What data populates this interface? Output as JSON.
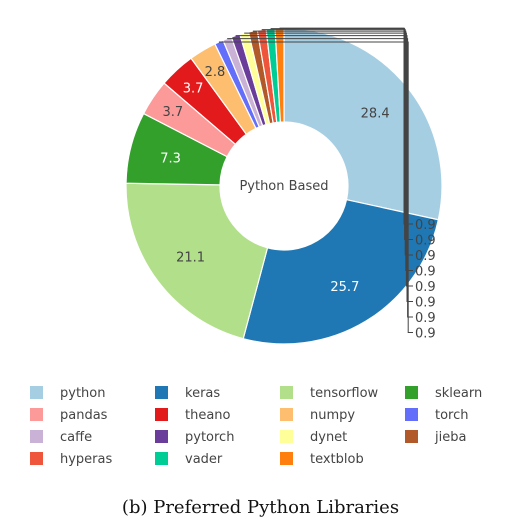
{
  "caption": "(b) Preferred Python Libraries",
  "chart_data": {
    "type": "pie",
    "hole_label": "Python Based",
    "legend_position": "bottom",
    "slices": [
      {
        "label": "python",
        "value": 28.4,
        "display": "28.4",
        "color": "#a6cee3",
        "text_color": "#444444"
      },
      {
        "label": "keras",
        "value": 25.7,
        "display": "25.7",
        "color": "#1f78b4",
        "text_color": "#ffffff"
      },
      {
        "label": "tensorflow",
        "value": 21.1,
        "display": "21.1",
        "color": "#b2df8a",
        "text_color": "#444444"
      },
      {
        "label": "sklearn",
        "value": 7.3,
        "display": "7.3",
        "color": "#33a02c",
        "text_color": "#ffffff"
      },
      {
        "label": "pandas",
        "value": 3.7,
        "display": "3.7",
        "color": "#fb9a99",
        "text_color": "#444444"
      },
      {
        "label": "theano",
        "value": 3.7,
        "display": "3.7",
        "color": "#e31a1c",
        "text_color": "#ffffff"
      },
      {
        "label": "numpy",
        "value": 2.8,
        "display": "2.8",
        "color": "#fdbf6f",
        "text_color": "#444444"
      },
      {
        "label": "torch",
        "value": 0.9,
        "display": "0.9",
        "color": "#636efa",
        "text_color": "#444444"
      },
      {
        "label": "caffe",
        "value": 0.9,
        "display": "0.9",
        "color": "#cab2d6",
        "text_color": "#444444"
      },
      {
        "label": "pytorch",
        "value": 0.9,
        "display": "0.9",
        "color": "#6a3d9a",
        "text_color": "#444444"
      },
      {
        "label": "dynet",
        "value": 0.9,
        "display": "0.9",
        "color": "#ffff99",
        "text_color": "#444444"
      },
      {
        "label": "jieba",
        "value": 0.9,
        "display": "0.9",
        "color": "#b15928",
        "text_color": "#444444"
      },
      {
        "label": "hyperas",
        "value": 0.9,
        "display": "0.9",
        "color": "#ef553b",
        "text_color": "#444444"
      },
      {
        "label": "vader",
        "value": 0.9,
        "display": "0.9",
        "color": "#00cc96",
        "text_color": "#444444"
      },
      {
        "label": "textblob",
        "value": 0.9,
        "display": "0.9",
        "color": "#ff7f0e",
        "text_color": "#444444"
      }
    ],
    "legend_order": [
      "python",
      "keras",
      "tensorflow",
      "sklearn",
      "pandas",
      "theano",
      "numpy",
      "torch",
      "caffe",
      "pytorch",
      "dynet",
      "jieba",
      "hyperas",
      "vader",
      "textblob"
    ]
  }
}
